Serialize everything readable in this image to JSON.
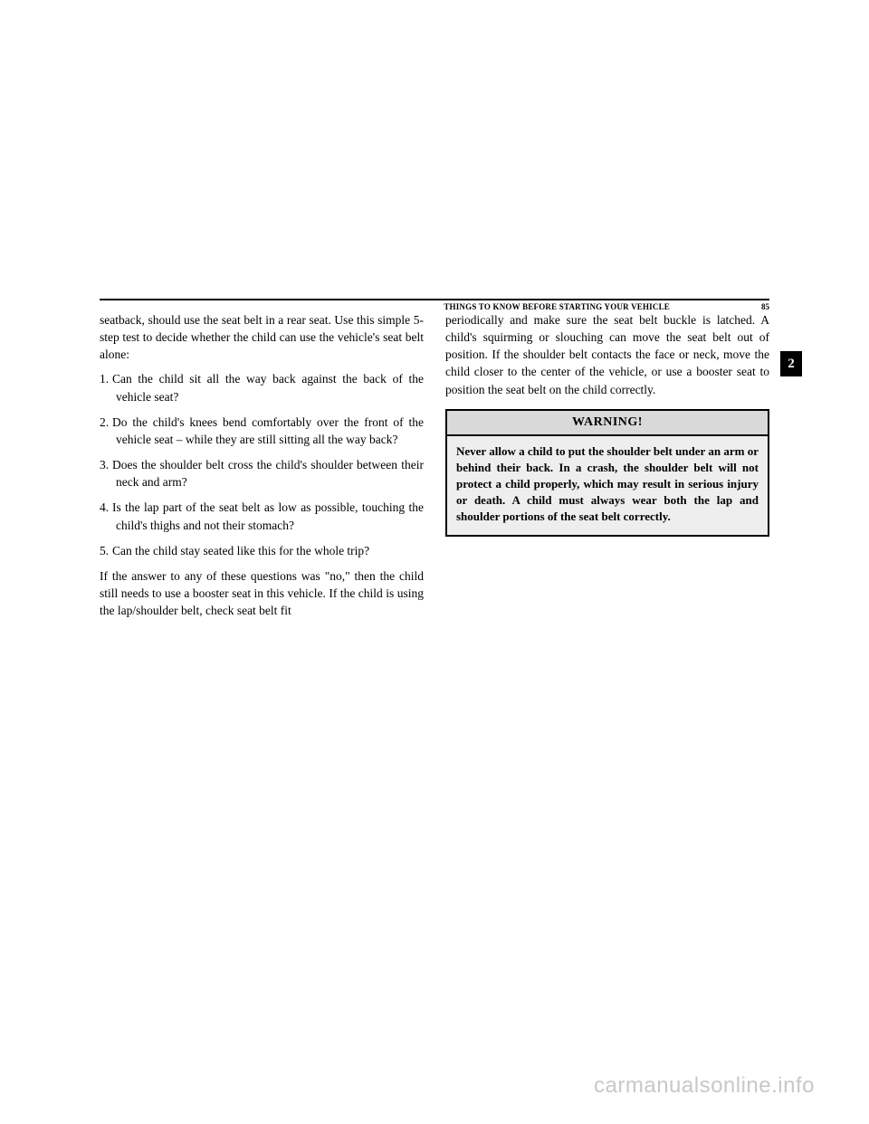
{
  "header": {
    "section_title": "THINGS TO KNOW BEFORE STARTING YOUR VEHICLE",
    "page_number": "85",
    "tab_number": "2"
  },
  "left_col": {
    "intro": "seatback, should use the seat belt in a rear seat. Use this simple 5-step test to decide whether the child can use the vehicle's seat belt alone:",
    "items": [
      "Can the child sit all the way back against the back of the vehicle seat?",
      "Do the child's knees bend comfortably over the front of the vehicle seat – while they are still sitting all the way back?",
      "Does the shoulder belt cross the child's shoulder between their neck and arm?",
      "Is the lap part of the seat belt as low as possible, touching the child's thighs and not their stomach?",
      "Can the child stay seated like this for the whole trip?"
    ],
    "outro": "If the answer to any of these questions was \"no,\" then the child still needs to use a booster seat in this vehicle. If the child is using the lap/shoulder belt, check seat belt fit"
  },
  "right_col": {
    "para": "periodically and make sure the seat belt buckle is latched. A child's squirming or slouching can move the seat belt out of position. If the shoulder belt contacts the face or neck, move the child closer to the center of the vehicle, or use a booster seat to position the seat belt on the child correctly."
  },
  "warning": {
    "title": "WARNING!",
    "body": "Never allow a child to put the shoulder belt under an arm or behind their back. In a crash, the shoulder belt will not protect a child properly, which may result in serious injury or death. A child must always wear both the lap and shoulder portions of the seat belt correctly."
  },
  "watermark": "carmanualsonline.info"
}
